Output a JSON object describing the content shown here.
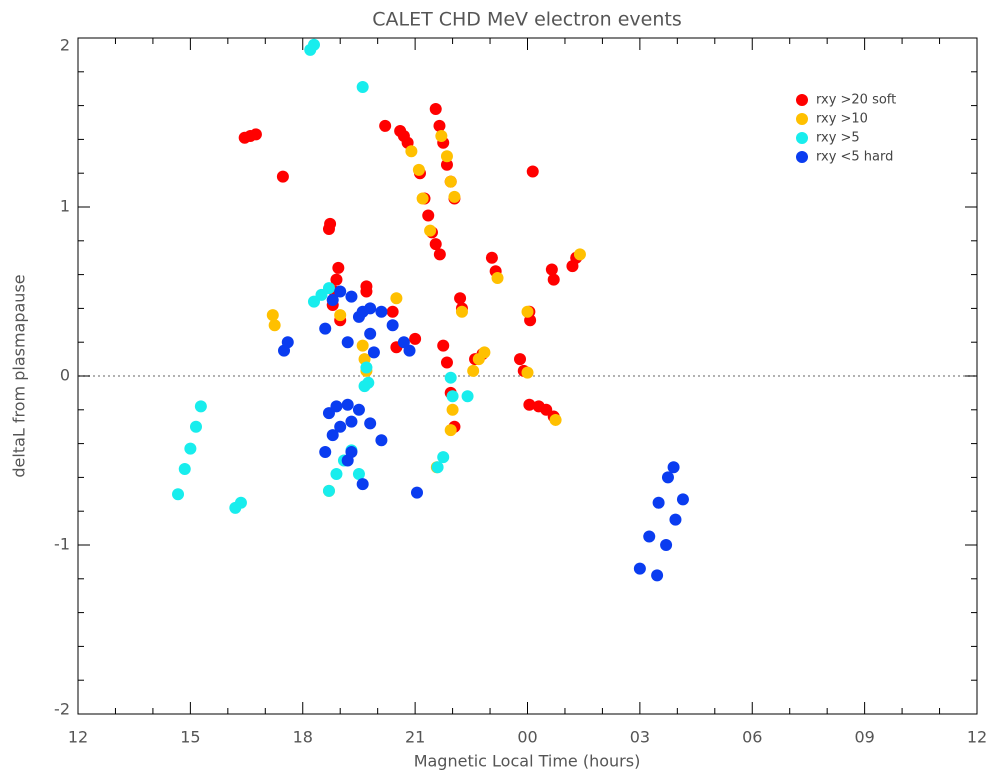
{
  "chart_data": {
    "type": "scatter",
    "title": "CALET CHD MeV electron events",
    "x_label": "Magnetic Local Time (hours)",
    "y_label": "deltaL from plasmapause",
    "xlim": [
      12,
      36
    ],
    "ylim": [
      -2,
      2
    ],
    "xticks": [
      12,
      15,
      18,
      21,
      {
        "value": 24,
        "label": "00"
      },
      {
        "value": 27,
        "label": "03"
      },
      {
        "value": 30,
        "label": "06"
      },
      {
        "value": 33,
        "label": "09"
      },
      {
        "value": 36,
        "label": "12"
      }
    ],
    "yticks": [
      -2,
      -1,
      0,
      1,
      2
    ],
    "legend": "upper right",
    "series": [
      {
        "name": "rxy >20 soft",
        "color": "#ff0000",
        "x": [
          16.45,
          16.6,
          16.75,
          17.47,
          18.73,
          18.7,
          18.8,
          18.85,
          18.9,
          18.95,
          19.0,
          19.7,
          19.7,
          20.2,
          20.6,
          20.7,
          20.8,
          20.4,
          20.5,
          21.0,
          21.13,
          21.25,
          21.35,
          21.45,
          21.55,
          21.66,
          21.55,
          21.65,
          21.75,
          21.85,
          21.95,
          22.05,
          21.75,
          21.85,
          21.95,
          22.05,
          22.2,
          22.25,
          22.6,
          22.8,
          23.05,
          23.15,
          23.8,
          23.9,
          24.05,
          24.07,
          24.14,
          24.05,
          24.3,
          24.5,
          24.7,
          24.65,
          24.7,
          25.2,
          25.3
        ],
        "y": [
          1.41,
          1.42,
          1.43,
          1.18,
          0.9,
          0.87,
          0.42,
          0.5,
          0.57,
          0.64,
          0.33,
          0.53,
          0.5,
          1.48,
          1.45,
          1.42,
          1.38,
          0.38,
          0.17,
          0.22,
          1.2,
          1.05,
          0.95,
          0.85,
          0.78,
          0.72,
          1.58,
          1.48,
          1.38,
          1.25,
          1.15,
          1.05,
          0.18,
          0.08,
          -0.1,
          -0.3,
          0.46,
          0.4,
          0.1,
          0.13,
          0.7,
          0.62,
          0.1,
          0.03,
          0.38,
          0.33,
          1.21,
          -0.17,
          -0.18,
          -0.2,
          -0.24,
          0.63,
          0.57,
          0.65,
          0.7
        ]
      },
      {
        "name": "rxy >10",
        "color": "#ffc000",
        "x": [
          17.2,
          17.25,
          19.0,
          19.6,
          19.65,
          19.7,
          20.5,
          20.9,
          21.1,
          21.2,
          21.4,
          21.7,
          21.85,
          21.95,
          22.05,
          22.25,
          21.95,
          22.0,
          22.55,
          22.7,
          22.85,
          23.2,
          24.0,
          24.0,
          24.75,
          25.4,
          21.58,
          18.7
        ],
        "y": [
          0.36,
          0.3,
          0.36,
          0.18,
          0.1,
          0.03,
          0.46,
          1.33,
          1.22,
          1.05,
          0.86,
          1.42,
          1.3,
          1.15,
          1.06,
          0.38,
          -0.32,
          -0.2,
          0.03,
          0.1,
          0.14,
          0.58,
          0.02,
          0.38,
          -0.26,
          0.72,
          -0.54,
          -0.68
        ]
      },
      {
        "name": "rxy >5",
        "color": "#18eded",
        "x": [
          14.67,
          14.85,
          15.0,
          15.15,
          15.28,
          16.2,
          16.35,
          18.2,
          18.3,
          19.6,
          18.3,
          18.5,
          18.7,
          19.75,
          19.7,
          18.7,
          18.9,
          19.1,
          19.3,
          19.5,
          19.65,
          21.6,
          21.75,
          22.0,
          22.4,
          21.95
        ],
        "y": [
          -0.7,
          -0.55,
          -0.43,
          -0.3,
          -0.18,
          -0.78,
          -0.75,
          1.93,
          1.96,
          1.71,
          0.44,
          0.48,
          0.52,
          -0.04,
          0.05,
          -0.68,
          -0.58,
          -0.5,
          -0.44,
          -0.58,
          -0.06,
          -0.54,
          -0.48,
          -0.12,
          -0.12,
          -0.01
        ]
      },
      {
        "name": "rxy <5 hard",
        "color": "#0a3cf0",
        "x": [
          17.5,
          17.6,
          18.6,
          18.8,
          19.0,
          19.3,
          19.6,
          19.8,
          19.2,
          19.5,
          19.8,
          20.1,
          20.4,
          20.7,
          20.85,
          19.9,
          18.7,
          18.9,
          19.2,
          19.5,
          19.8,
          20.1,
          18.6,
          18.8,
          19.0,
          19.3,
          19.2,
          19.3,
          19.6,
          21.05,
          27.0,
          27.25,
          27.5,
          27.75,
          27.9,
          27.46,
          27.7,
          27.95,
          28.15
        ],
        "y": [
          0.15,
          0.2,
          0.28,
          0.45,
          0.5,
          0.47,
          0.38,
          0.25,
          0.2,
          0.35,
          0.4,
          0.38,
          0.3,
          0.2,
          0.15,
          0.14,
          -0.22,
          -0.18,
          -0.17,
          -0.2,
          -0.28,
          -0.38,
          -0.45,
          -0.35,
          -0.3,
          -0.27,
          -0.5,
          -0.45,
          -0.64,
          -0.69,
          -1.14,
          -0.95,
          -0.75,
          -0.6,
          -0.54,
          -1.18,
          -1.0,
          -0.85,
          -0.73
        ]
      }
    ]
  }
}
